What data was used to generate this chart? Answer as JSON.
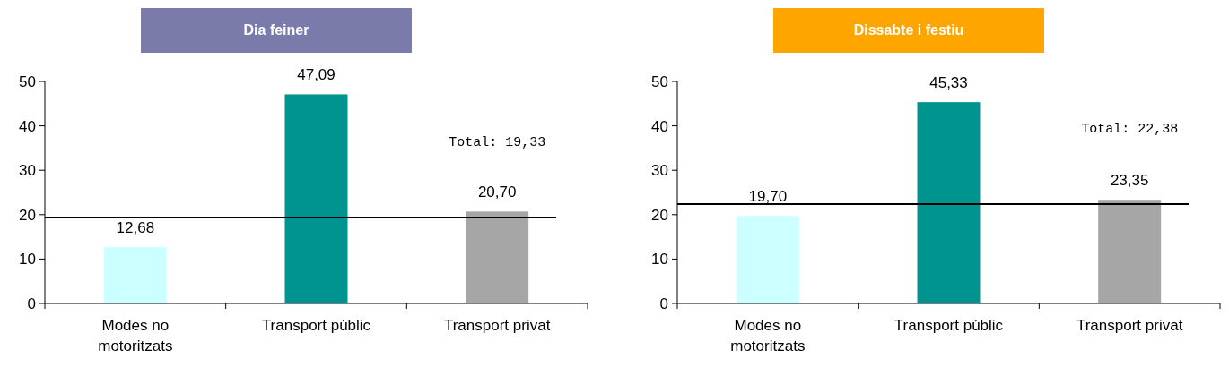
{
  "chart_data": [
    {
      "type": "bar",
      "title": "Dia feiner",
      "categories": [
        "Modes no motoritzats",
        "Transport públic",
        "Transport privat"
      ],
      "values": [
        12.68,
        47.09,
        20.7
      ],
      "colors": [
        "#ccffff",
        "#009490",
        "#a6a6a6"
      ],
      "value_labels": [
        "12,68",
        "47,09",
        "20,70"
      ],
      "ylim": [
        0,
        50
      ],
      "yticks": [
        0,
        10,
        20,
        30,
        40,
        50
      ],
      "ref_lines": [
        {
          "axis": "y",
          "value": 19.33,
          "label": "Total: 19,33",
          "color": "#000000"
        }
      ]
    },
    {
      "type": "bar",
      "title": "Dissabte i festiu",
      "categories": [
        "Modes no motoritzats",
        "Transport públic",
        "Transport privat"
      ],
      "values": [
        19.7,
        45.33,
        23.35
      ],
      "colors": [
        "#ccffff",
        "#009490",
        "#a6a6a6"
      ],
      "value_labels": [
        "19,70",
        "45,33",
        "23,35"
      ],
      "ylim": [
        0,
        50
      ],
      "yticks": [
        0,
        10,
        20,
        30,
        40,
        50
      ],
      "ref_lines": [
        {
          "axis": "y",
          "value": 22.38,
          "label": "Total: 22,38",
          "color": "#000000"
        }
      ]
    }
  ]
}
